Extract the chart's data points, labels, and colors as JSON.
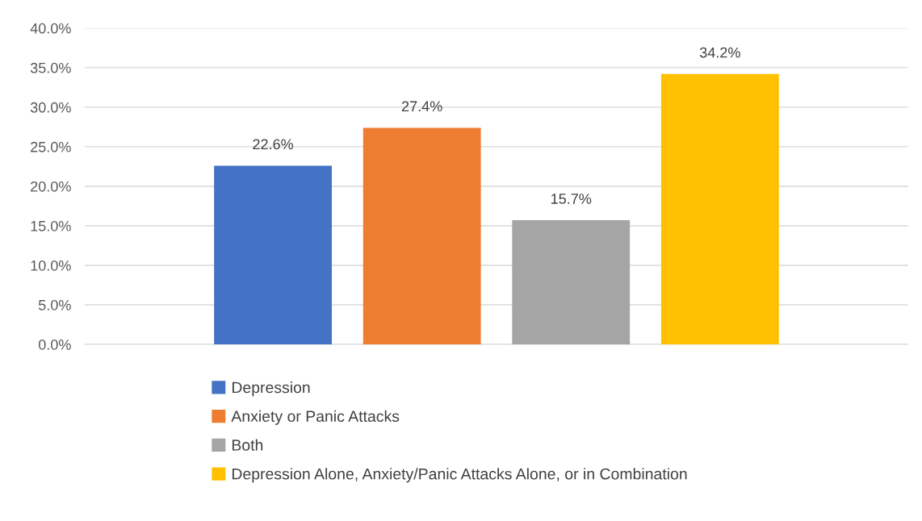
{
  "chart_data": {
    "type": "bar",
    "categories": [
      null
    ],
    "series": [
      {
        "name": "Depression",
        "color": "#4472c4",
        "values": [
          22.6
        ],
        "value_labels": [
          "22.6%"
        ]
      },
      {
        "name": "Anxiety or Panic Attacks",
        "color": "#ed7d31",
        "values": [
          27.4
        ],
        "value_labels": [
          "27.4%"
        ]
      },
      {
        "name": "Both",
        "color": "#a5a5a5",
        "values": [
          15.7
        ],
        "value_labels": [
          "15.7%"
        ]
      },
      {
        "name": "Depression Alone, Anxiety/Panic Attacks Alone, or in Combination",
        "color": "#ffc000",
        "values": [
          34.2
        ],
        "value_labels": [
          "34.2%"
        ]
      }
    ],
    "ylim": [
      0,
      40
    ],
    "yticks": [
      {
        "value": 0,
        "label": "0.0%"
      },
      {
        "value": 5,
        "label": "5.0%"
      },
      {
        "value": 10,
        "label": "10.0%"
      },
      {
        "value": 15,
        "label": "15.0%"
      },
      {
        "value": 20,
        "label": "20.0%"
      },
      {
        "value": 25,
        "label": "25.0%"
      },
      {
        "value": 30,
        "label": "30.0%"
      },
      {
        "value": 35,
        "label": "35.0%"
      },
      {
        "value": 40,
        "label": "40.0%"
      }
    ],
    "grid": "y",
    "legend": "bottom"
  }
}
